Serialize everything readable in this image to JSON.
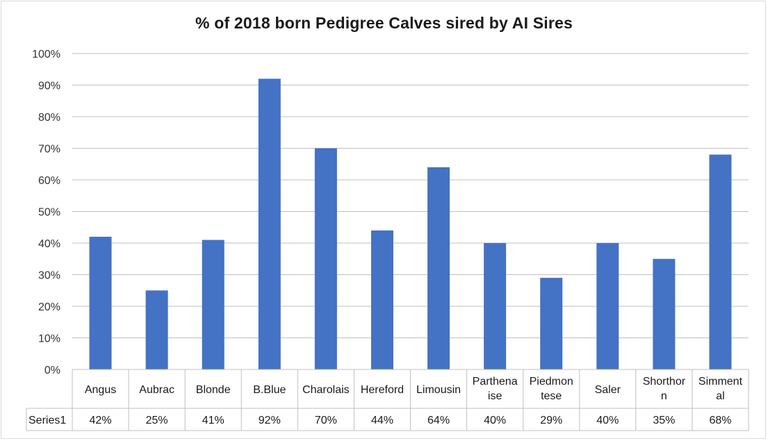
{
  "chart_data": {
    "type": "bar",
    "title": "% of 2018 born Pedigree Calves sired by AI Sires",
    "categories": [
      [
        "Angus"
      ],
      [
        "Aubrac"
      ],
      [
        "Blonde"
      ],
      [
        "B.Blue"
      ],
      [
        "Charolais"
      ],
      [
        "Hereford"
      ],
      [
        "Limousin"
      ],
      [
        "Parthena",
        "ise"
      ],
      [
        "Piedmon",
        "tese"
      ],
      [
        "Saler"
      ],
      [
        "Shorthor",
        "n"
      ],
      [
        "Simment",
        "al"
      ]
    ],
    "series": [
      {
        "name": "Series1",
        "values": [
          42,
          25,
          41,
          92,
          70,
          44,
          64,
          40,
          29,
          40,
          35,
          68
        ],
        "labels": [
          "42%",
          "25%",
          "41%",
          "92%",
          "70%",
          "44%",
          "64%",
          "40%",
          "29%",
          "40%",
          "35%",
          "68%"
        ],
        "color": "#4472c4"
      }
    ],
    "ylim": [
      0,
      100
    ],
    "yticks": [
      "0%",
      "10%",
      "20%",
      "30%",
      "40%",
      "50%",
      "60%",
      "70%",
      "80%",
      "90%",
      "100%"
    ],
    "grid": true,
    "data_table": true
  }
}
